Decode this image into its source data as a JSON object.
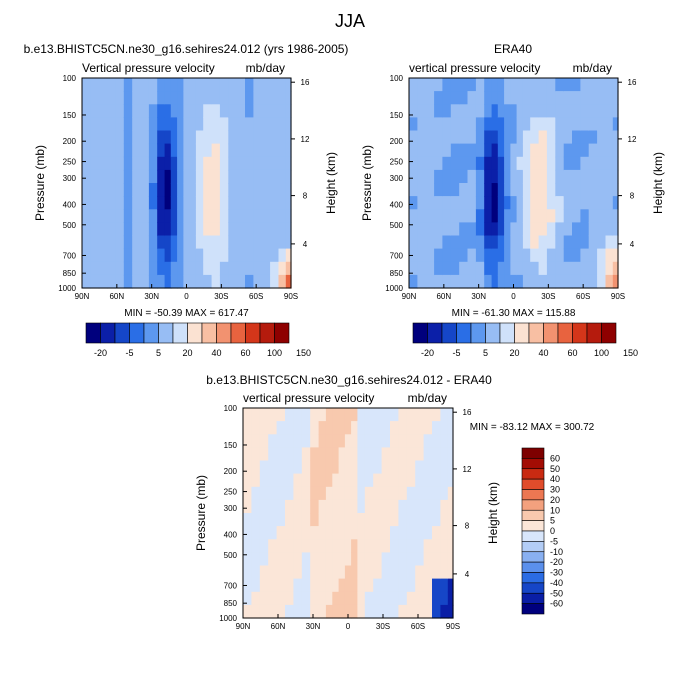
{
  "figure": {
    "title": "JJA",
    "palette": {
      "model_levels": [
        "#00007d",
        "#0b1fa8",
        "#1546c8",
        "#2a6ee6",
        "#5d98ef",
        "#97bdf4",
        "#cfe1fa",
        "#fbe2d2",
        "#f8bfa3",
        "#f29270",
        "#e8633f",
        "#d4361a",
        "#b51b0d",
        "#8e0000"
      ],
      "diff_levels": [
        "#00007d",
        "#0a1ea6",
        "#1646c7",
        "#2b6ce4",
        "#5b90ec",
        "#89b0f1",
        "#b3cdf6",
        "#d8e6fb",
        "#fbe6d8",
        "#f8c9ae",
        "#f3a17e",
        "#ec7752",
        "#e04c2b",
        "#c92a12",
        "#a30c04",
        "#7e0000"
      ]
    }
  },
  "chart_data": [
    {
      "type": "heatmap",
      "title": "b.e13.BHISTC5CN.ne30_g16.sehires24.012 (yrs 1986-2005)",
      "subtitle_left": "Vertical pressure velocity",
      "subtitle_right": "mb/day",
      "ylabel": "Pressure (mb)",
      "ylabel_right": "Height (km)",
      "x_ticks": [
        "90N",
        "60N",
        "30N",
        "0",
        "30S",
        "60S",
        "90S"
      ],
      "y_ticks": [
        "100",
        "150",
        "200",
        "250",
        "300",
        "400",
        "500",
        "700",
        "850",
        "1000"
      ],
      "y_right_ticks": [
        "16",
        "12",
        "8",
        "4"
      ],
      "min_max": "MIN = -50.39   MAX = 617.47",
      "colorbar_labels": [
        "-20",
        "-5",
        "5",
        "20",
        "40",
        "60",
        "100",
        "150"
      ],
      "min": -50.39,
      "max": 617.47
    },
    {
      "type": "heatmap",
      "title": "ERA40",
      "subtitle_left": "vertical pressure velocity",
      "subtitle_right": "mb/day",
      "ylabel": "Pressure (mb)",
      "ylabel_right": "Height (km)",
      "x_ticks": [
        "90N",
        "60N",
        "30N",
        "0",
        "30S",
        "60S",
        "90S"
      ],
      "y_ticks": [
        "100",
        "150",
        "200",
        "250",
        "300",
        "400",
        "500",
        "700",
        "850",
        "1000"
      ],
      "y_right_ticks": [
        "16",
        "12",
        "8",
        "4"
      ],
      "min_max": "MIN = -61.30   MAX = 115.88",
      "colorbar_labels": [
        "-20",
        "-5",
        "5",
        "20",
        "40",
        "60",
        "100",
        "150"
      ],
      "min": -61.3,
      "max": 115.88
    },
    {
      "type": "heatmap",
      "title": "b.e13.BHISTC5CN.ne30_g16.sehires24.012 - ERA40",
      "subtitle_left": "vertical pressure velocity",
      "subtitle_right": "mb/day",
      "ylabel": "Pressure (mb)",
      "ylabel_right": "Height (km)",
      "x_ticks": [
        "90N",
        "60N",
        "30N",
        "0",
        "30S",
        "60S",
        "90S"
      ],
      "y_ticks": [
        "100",
        "150",
        "200",
        "250",
        "300",
        "400",
        "500",
        "700",
        "850",
        "1000"
      ],
      "y_right_ticks": [
        "16",
        "12",
        "8",
        "4"
      ],
      "min_max": "MIN = -83.12  MAX = 300.72",
      "colorbar_labels": [
        "60",
        "50",
        "40",
        "30",
        "20",
        "10",
        "5",
        "0",
        "-5",
        "-10",
        "-20",
        "-30",
        "-40",
        "-50",
        "-60"
      ],
      "min": -83.12,
      "max": 300.72
    }
  ]
}
